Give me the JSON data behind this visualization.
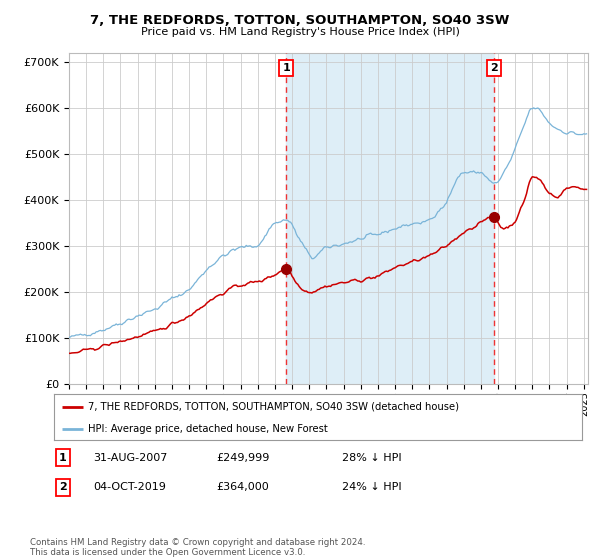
{
  "title": "7, THE REDFORDS, TOTTON, SOUTHAMPTON, SO40 3SW",
  "subtitle": "Price paid vs. HM Land Registry's House Price Index (HPI)",
  "ylim": [
    0,
    720000
  ],
  "ytick_labels": [
    "£0",
    "£100K",
    "£200K",
    "£300K",
    "£400K",
    "£500K",
    "£600K",
    "£700K"
  ],
  "ytick_vals": [
    0,
    100000,
    200000,
    300000,
    400000,
    500000,
    600000,
    700000
  ],
  "purchase1_date": "2007-08-31",
  "purchase1_price": 249999,
  "purchase2_date": "2019-10-04",
  "purchase2_price": 364000,
  "hpi_color": "#7ab4d8",
  "hpi_fill_color": "#deeef7",
  "price_color": "#cc0000",
  "marker_color": "#990000",
  "dashed_line_color": "#ee3333",
  "background_color": "#ffffff",
  "legend1_label": "7, THE REDFORDS, TOTTON, SOUTHAMPTON, SO40 3SW (detached house)",
  "legend2_label": "HPI: Average price, detached house, New Forest",
  "annotation1_date": "31-AUG-2007",
  "annotation1_price": "£249,999",
  "annotation1_hpi": "28% ↓ HPI",
  "annotation2_date": "04-OCT-2019",
  "annotation2_price": "£364,000",
  "annotation2_hpi": "24% ↓ HPI",
  "footer": "Contains HM Land Registry data © Crown copyright and database right 2024.\nThis data is licensed under the Open Government Licence v3.0."
}
